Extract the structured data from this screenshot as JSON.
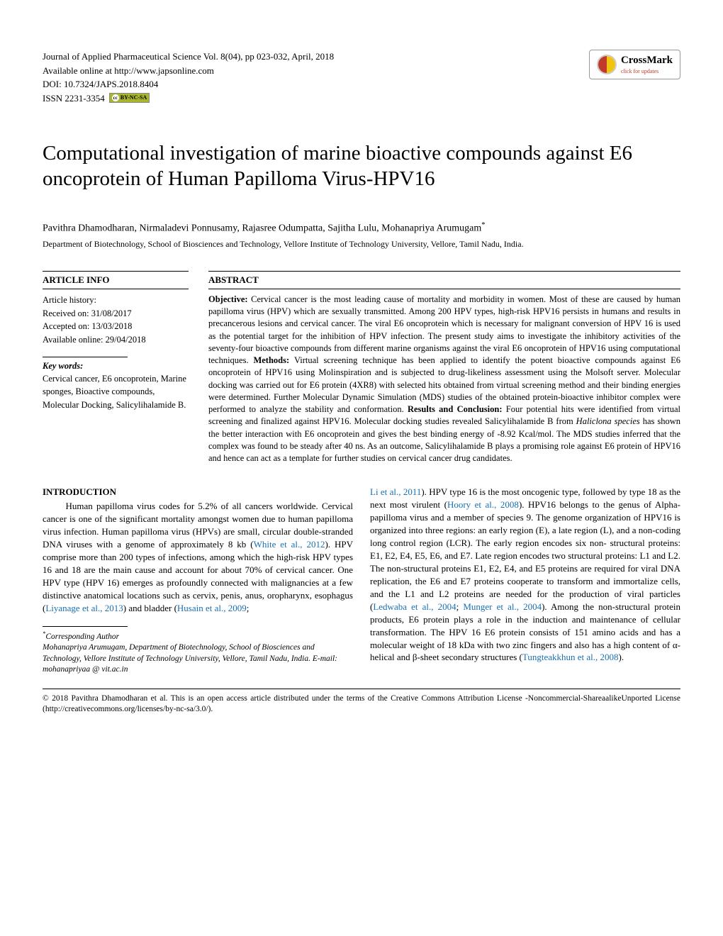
{
  "journal": {
    "line1": "Journal of Applied Pharmaceutical Science Vol. 8(04), pp 023-032, April, 2018",
    "line2": "Available online at http://www.japsonline.com",
    "doi": "DOI: 10.7324/JAPS.2018.8404",
    "issn": "ISSN 2231-3354",
    "cc_text": "BY-NC-SA"
  },
  "crossmark": {
    "label": "CrossMark",
    "sub": "click for updates"
  },
  "title": "Computational investigation of marine bioactive compounds against E6 oncoprotein of Human Papilloma Virus-HPV16",
  "authors": "Pavithra Dhamodharan, Nirmaladevi Ponnusamy, Rajasree Odumpatta, Sajitha Lulu, Mohanapriya Arumugam",
  "affiliation": "Department of Biotechnology, School of Biosciences and Technology, Vellore Institute of Technology University, Vellore, Tamil Nadu, India.",
  "info_head": "ARTICLE INFO",
  "history": {
    "l1": "Article history:",
    "l2": "Received on: 31/08/2017",
    "l3": "Accepted on: 13/03/2018",
    "l4": "Available online: 29/04/2018"
  },
  "keywords_head": "Key words:",
  "keywords": "Cervical cancer, E6 oncoprotein, Marine sponges, Bioactive compounds, Molecular Docking, Salicylihalamide B.",
  "abstract_head": "ABSTRACT",
  "abstract": {
    "obj_label": "Objective: ",
    "obj": "Cervical cancer is the most leading cause of mortality and morbidity in women. Most of these are caused by human papilloma virus (HPV) which are sexually transmitted. Among 200 HPV types, high-risk HPV16 persists in humans and results in precancerous lesions and cervical cancer. The viral E6 oncoprotein which is necessary for malignant conversion of HPV 16 is used as the potential target for the inhibition of HPV infection. The present study aims to investigate the inhibitory activities of the seventy-four bioactive compounds from different marine organisms against the viral E6 oncoprotein of HPV16 using computational techniques. ",
    "meth_label": "Methods: ",
    "meth": "Virtual screening technique has been applied to identify the potent bioactive compounds against E6 oncoprotein of HPV16 using Molinspiration and is subjected to drug-likeliness assessment using the Molsoft server. Molecular docking was carried out for E6 protein (4XR8) with selected hits obtained from virtual screening method and their binding energies were determined. Further Molecular Dynamic Simulation (MDS) studies of the obtained protein-bioactive inhibitor complex were performed to analyze the stability and conformation. ",
    "res_label": "Results and Conclusion: ",
    "res1": "Four potential hits were identified from virtual screening and finalized against HPV16. Molecular docking studies revealed Salicylihalamide B from ",
    "res_ital": "Haliclona species",
    "res2": " has shown the better interaction with E6 oncoprotein and gives the best binding energy of -8.92 Kcal/mol. The MDS studies inferred that the complex was found to be steady after 40 ns. As an outcome, Salicylihalamide B plays a promising role against E6 protein of HPV16 and hence can act as a template for further studies on cervical cancer drug candidates."
  },
  "intro_head": "INTRODUCTION",
  "intro": {
    "c1a": "Human papilloma virus codes for 5.2% of all cancers worldwide. Cervical cancer is one of the significant mortality amongst women due to human papilloma virus infection. Human papilloma virus (HPVs) are small, circular double-stranded DNA viruses with a genome of approximately 8 kb (",
    "cite1": "White et al., 2012",
    "c1b": "). HPV comprise more than 200 types of infections, among which the high-risk HPV types 16 and 18 are the main cause and account for about 70% of cervical cancer. One HPV type (HPV 16) emerges as profoundly connected with malignancies at a few distinctive anatomical locations such as cervix, penis, anus, oropharynx, esophagus (",
    "cite2": "Liyanage et al., 2013",
    "c1c": ") and bladder (",
    "cite3": "Husain et al., 2009",
    "c1d": "; ",
    "cite4": "Li et al., 2011",
    "c2a": "). HPV type 16 is the most oncogenic type, followed by type 18 as the next most virulent (",
    "cite5": "Hoory et al., 2008",
    "c2b": "). HPV16 belongs to the genus of Alpha-papilloma virus and a member of species 9. The genome organization of HPV16 is organized into three regions: an early region (E), a late region (L), and a non-coding long control region (LCR). The early region encodes six non- structural proteins: E1, E2, E4, E5, E6, and E7. Late region encodes two structural proteins: L1 and L2. The non-structural proteins E1, E2, E4, and E5 proteins are required for viral DNA replication, the E6 and E7 proteins cooperate to transform and immortalize cells, and the L1 and L2 proteins are needed for the production of viral particles (",
    "cite6": "Ledwaba et al., 2004",
    "c2c": "; ",
    "cite7": "Munger et al., 2004",
    "c2d": "). Among the non-structural protein products, E6 protein plays a role in the induction and maintenance of cellular transformation. The HPV 16 E6 protein consists of 151 amino acids and has a molecular weight of 18 kDa with two zinc fingers and also has a high content of α-helical and β-sheet secondary structures (",
    "cite8": "Tungteakkhun et al., 2008",
    "c2e": ")."
  },
  "footnote": {
    "label": "Corresponding Author",
    "text": "Mohanapriya Arumugam, Department of Biotechnology, School of Biosciences and Technology, Vellore Institute of Technology University, Vellore, Tamil Nadu, India. E-mail: mohanapriyaa @ vit.ac.in"
  },
  "license": "© 2018 Pavithra Dhamodharan et al. This is an open access article distributed under the terms of the Creative Commons Attribution License -Noncommercial-ShareaalikeUnported License (http://creativecommons.org/licenses/by-nc-sa/3.0/).",
  "colors": {
    "link": "#1a6fb0",
    "text": "#000000",
    "bg": "#ffffff"
  }
}
